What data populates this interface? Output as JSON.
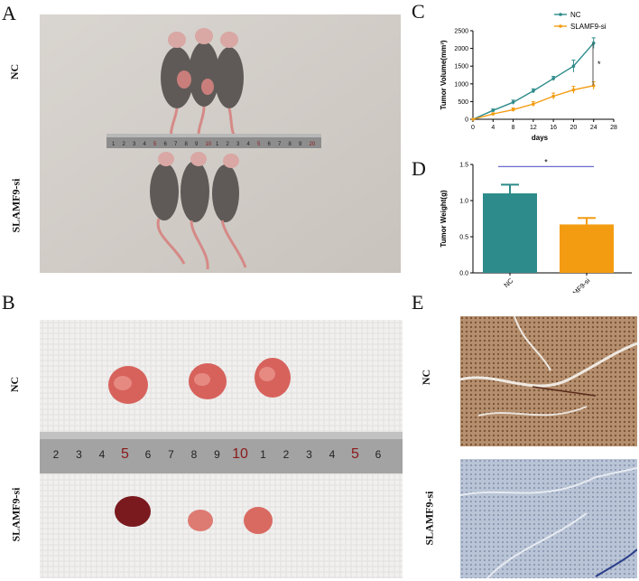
{
  "panels": {
    "a": {
      "letter": "A",
      "rows": [
        "NC",
        "SLAMF9-si"
      ],
      "ruler_ticks": [
        "1",
        "2",
        "3",
        "4",
        "5",
        "6",
        "7",
        "8",
        "9",
        "10",
        "1",
        "2",
        "3",
        "4",
        "5",
        "6",
        "7",
        "8",
        "9",
        "20"
      ]
    },
    "b": {
      "letter": "B",
      "rows": [
        "NC",
        "SLAMF9-si"
      ],
      "ruler_ticks": [
        "2",
        "3",
        "4",
        "5",
        "6",
        "7",
        "8",
        "9",
        "10",
        "1",
        "2",
        "3",
        "4",
        "5",
        "6"
      ]
    },
    "c": {
      "letter": "C"
    },
    "d": {
      "letter": "D"
    },
    "e": {
      "letter": "E",
      "rows": [
        "NC",
        "SLAMF9-si"
      ]
    }
  },
  "colors": {
    "nc": "#2e8b8b",
    "slamf9": "#f39c12",
    "sig": "#6a6ad0"
  },
  "chart_data": [
    {
      "type": "line",
      "xlabel": "days",
      "ylabel": "Tumor Volume(mm³)",
      "x": [
        0,
        4,
        8,
        12,
        16,
        20,
        24
      ],
      "xticks": [
        0,
        4,
        8,
        12,
        16,
        20,
        24,
        28
      ],
      "yticks": [
        0,
        500,
        1000,
        1500,
        2000,
        2500
      ],
      "xlim": [
        0,
        28
      ],
      "ylim": [
        0,
        2500
      ],
      "series": [
        {
          "name": "NC",
          "values": [
            0,
            250,
            480,
            800,
            1150,
            1500,
            2150
          ],
          "errors": [
            0,
            40,
            60,
            60,
            60,
            170,
            150
          ]
        },
        {
          "name": "SLAMF9-si",
          "values": [
            0,
            150,
            270,
            430,
            650,
            830,
            950
          ],
          "errors": [
            0,
            30,
            50,
            70,
            90,
            100,
            110
          ]
        }
      ],
      "annotation": "*",
      "legend": "top-right"
    },
    {
      "type": "bar",
      "ylabel": "Tumor Weight(g)",
      "categories": [
        "NC",
        "SLAMF9-si"
      ],
      "values": [
        1.1,
        0.67
      ],
      "errors": [
        0.12,
        0.09
      ],
      "yticks": [
        "0.0",
        "0.5",
        "1.0",
        "1.5"
      ],
      "ylim": [
        0,
        1.5
      ],
      "annotation": "*"
    }
  ]
}
